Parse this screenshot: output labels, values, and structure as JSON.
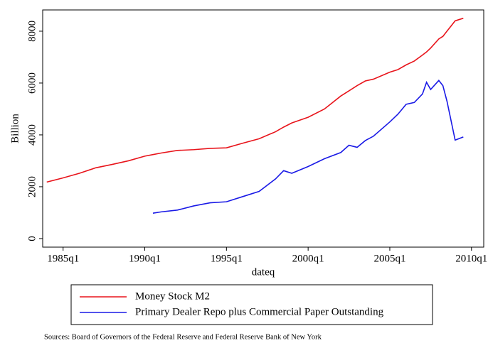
{
  "chart_data": {
    "type": "line",
    "x_label": "dateq",
    "y_label": "Billion",
    "x": [
      "1984q1",
      "1985q1",
      "1986q1",
      "1987q1",
      "1988q1",
      "1989q1",
      "1990q1",
      "1990q3",
      "1991q1",
      "1992q1",
      "1993q1",
      "1994q1",
      "1995q1",
      "1996q1",
      "1997q1",
      "1998q1",
      "1998q3",
      "1999q1",
      "2000q1",
      "2001q1",
      "2002q1",
      "2002q3",
      "2003q1",
      "2003q3",
      "2004q1",
      "2005q1",
      "2005q3",
      "2006q1",
      "2006q3",
      "2007q1",
      "2007q2",
      "2007q3",
      "2008q1",
      "2008q2",
      "2008q3",
      "2009q1",
      "2009q3"
    ],
    "series": [
      {
        "name": "Money Stock M2",
        "color": "#e8141b",
        "values": [
          2180,
          2340,
          2520,
          2730,
          2860,
          3000,
          3180,
          3240,
          3300,
          3400,
          3430,
          3480,
          3500,
          3680,
          3850,
          4120,
          4300,
          4460,
          4680,
          5000,
          5500,
          5700,
          5900,
          6080,
          6150,
          6420,
          6520,
          6700,
          6850,
          7080,
          7200,
          7350,
          7700,
          7800,
          8000,
          8400,
          8500
        ]
      },
      {
        "name": "Primary Dealer Repo plus Commercial Paper Outstanding",
        "color": "#1a1ae6",
        "values": [
          null,
          null,
          null,
          null,
          null,
          null,
          null,
          980,
          1030,
          1100,
          1260,
          1380,
          1420,
          1620,
          1820,
          2300,
          2620,
          2520,
          2780,
          3080,
          3320,
          3600,
          3520,
          3780,
          3950,
          4500,
          4800,
          5180,
          5250,
          5580,
          6030,
          5750,
          6100,
          5900,
          5300,
          3800,
          3920
        ]
      }
    ],
    "xlim": [
      "1983q4",
      "2010q4"
    ],
    "xticks": [
      "1985q1",
      "1990q1",
      "1995q1",
      "2000q1",
      "2005q1",
      "2010q1"
    ],
    "ylim": [
      -330,
      8820
    ],
    "yticks": [
      0,
      2000,
      4000,
      6000,
      8000
    ],
    "legend": "bottom",
    "note": "Sources: Board of Governors of the Federal Reserve and Federal Reserve Bank of New York"
  }
}
